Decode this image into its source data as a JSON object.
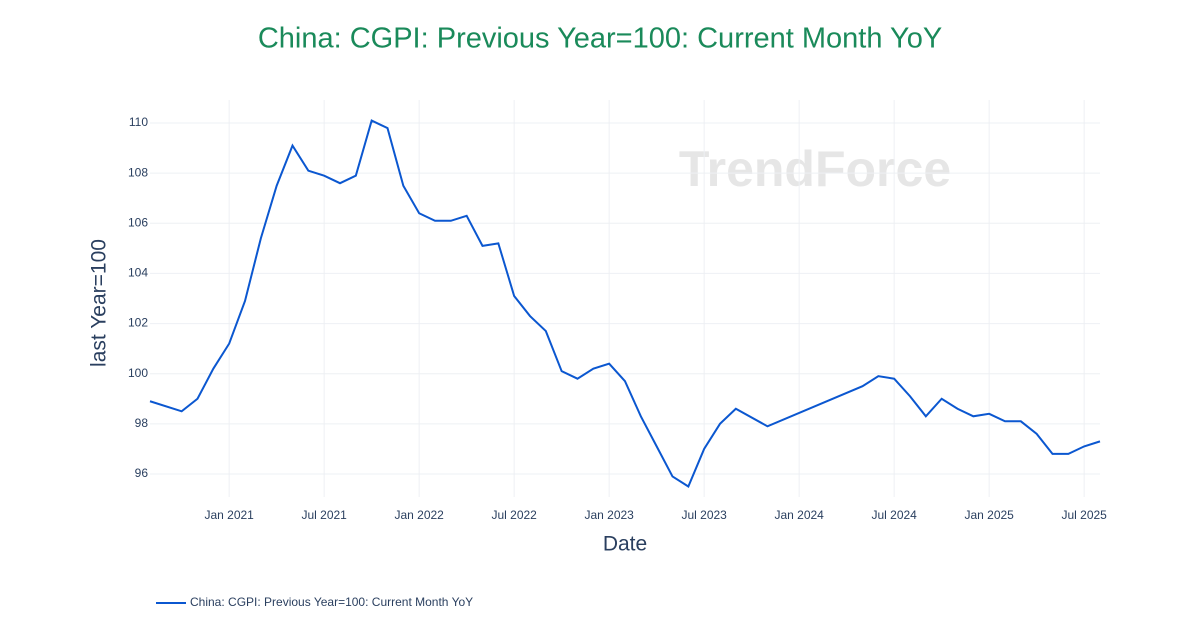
{
  "chart_data": {
    "type": "line",
    "title": "China: CGPI: Previous Year=100: Current Month YoY",
    "x_label": "Date",
    "y_label": "last Year=100",
    "watermark": "TrendForce",
    "x": [
      "2020-08",
      "2020-10",
      "2020-11",
      "2020-12",
      "2021-01",
      "2021-02",
      "2021-03",
      "2021-04",
      "2021-05",
      "2021-06",
      "2021-07",
      "2021-08",
      "2021-09",
      "2021-10",
      "2021-11",
      "2021-12",
      "2022-01",
      "2022-02",
      "2022-03",
      "2022-04",
      "2022-05",
      "2022-06",
      "2022-07",
      "2022-08",
      "2022-09",
      "2022-10",
      "2022-11",
      "2022-12",
      "2023-01",
      "2023-02",
      "2023-03",
      "2023-04",
      "2023-05",
      "2023-06",
      "2023-07",
      "2023-08",
      "2023-09",
      "2023-11",
      "2024-05",
      "2024-06",
      "2024-07",
      "2024-08",
      "2024-09",
      "2024-10",
      "2024-11",
      "2024-12",
      "2025-01",
      "2025-02",
      "2025-03",
      "2025-04",
      "2025-05",
      "2025-06",
      "2025-07",
      "2025-08"
    ],
    "series": [
      {
        "name": "China: CGPI: Previous Year=100: Current Month YoY",
        "color": "#0b57d0",
        "values": [
          98.9,
          98.5,
          99.0,
          100.2,
          101.2,
          102.9,
          105.4,
          107.5,
          109.1,
          108.1,
          107.9,
          107.6,
          107.9,
          110.1,
          109.8,
          107.5,
          106.4,
          106.1,
          106.1,
          106.3,
          105.1,
          105.2,
          103.1,
          102.3,
          101.7,
          100.1,
          99.8,
          100.2,
          100.4,
          99.7,
          98.3,
          97.1,
          95.9,
          95.5,
          97.0,
          98.0,
          98.6,
          97.9,
          99.5,
          99.9,
          99.8,
          99.1,
          98.3,
          99.0,
          98.6,
          98.3,
          98.4,
          98.1,
          98.1,
          97.6,
          96.8,
          96.8,
          97.1,
          97.3
        ]
      }
    ],
    "xlim": [
      "2020-08",
      "2025-08"
    ],
    "xticks": [
      {
        "value": "2021-01",
        "label": "Jan 2021"
      },
      {
        "value": "2021-07",
        "label": "Jul 2021"
      },
      {
        "value": "2022-01",
        "label": "Jan 2022"
      },
      {
        "value": "2022-07",
        "label": "Jul 2022"
      },
      {
        "value": "2023-01",
        "label": "Jan 2023"
      },
      {
        "value": "2023-07",
        "label": "Jul 2023"
      },
      {
        "value": "2024-01",
        "label": "Jan 2024"
      },
      {
        "value": "2024-07",
        "label": "Jul 2024"
      },
      {
        "value": "2025-01",
        "label": "Jan 2025"
      },
      {
        "value": "2025-07",
        "label": "Jul 2025"
      }
    ],
    "ylim": [
      95.08,
      110.92
    ],
    "yticks": [
      96,
      98,
      100,
      102,
      104,
      106,
      108,
      110
    ],
    "grid": true
  }
}
